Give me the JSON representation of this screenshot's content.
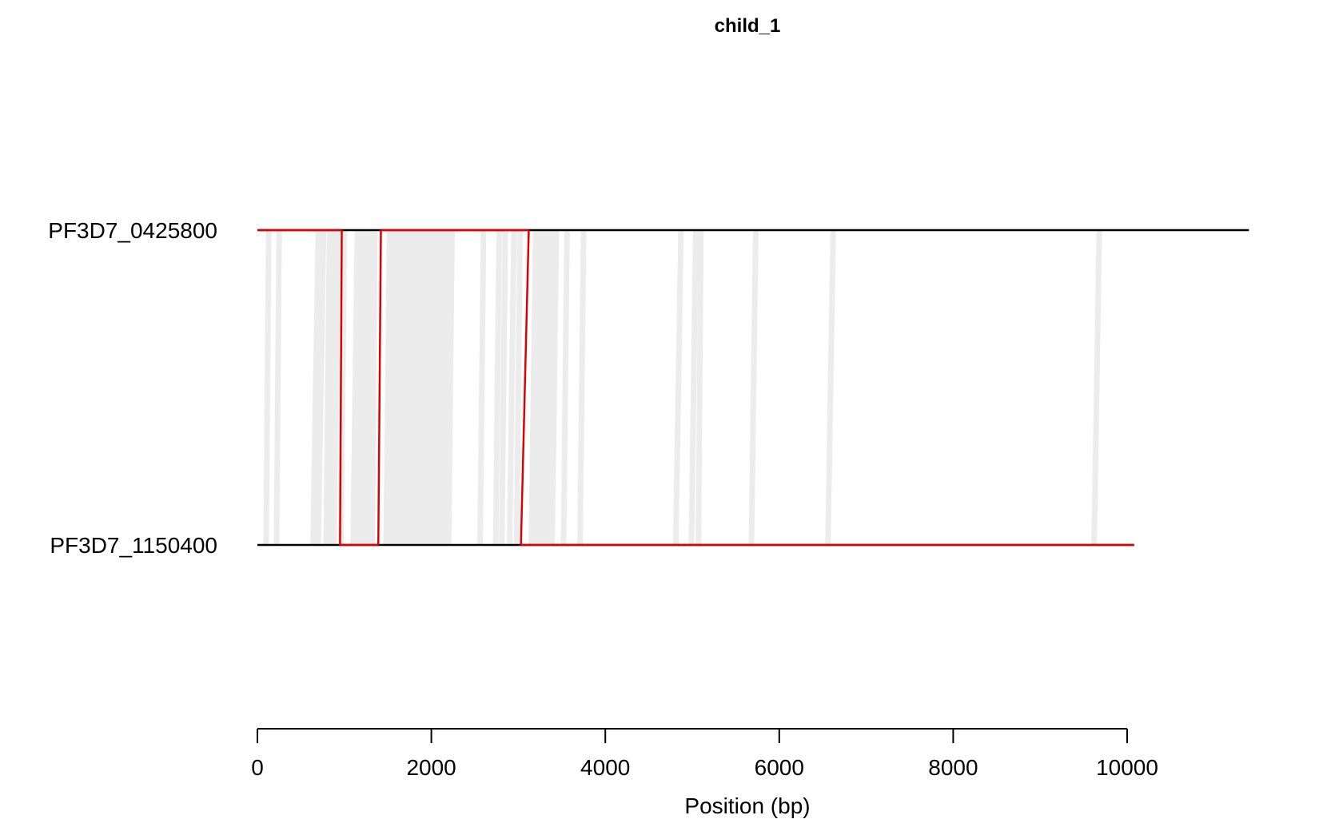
{
  "chart_data": {
    "type": "line",
    "title": "child_1",
    "xlabel": "Position (bp)",
    "ylabel": "",
    "xlim": [
      0,
      11400
    ],
    "x_ticks": [
      0,
      2000,
      4000,
      6000,
      8000,
      10000
    ],
    "x_tick_labels": [
      "0",
      "2000",
      "4000",
      "6000",
      "8000",
      "10000"
    ],
    "grid": false,
    "sequences": [
      {
        "name": "PF3D7_0425800",
        "start": 0,
        "end": 11400
      },
      {
        "name": "PF3D7_1150400",
        "start": 0,
        "end": 10080
      }
    ],
    "alignment_links": {
      "color": "#ececec",
      "pairs": [
        [
          130,
          100
        ],
        [
          250,
          220
        ],
        [
          700,
          640
        ],
        [
          760,
          700
        ],
        [
          830,
          790
        ],
        [
          880,
          840
        ],
        [
          920,
          880
        ],
        [
          1000,
          960
        ],
        [
          1150,
          1100
        ],
        [
          1250,
          1200
        ],
        [
          1300,
          1260
        ],
        [
          1350,
          1320
        ],
        [
          1520,
          1480
        ],
        [
          1580,
          1540
        ],
        [
          1650,
          1610
        ],
        [
          1720,
          1680
        ],
        [
          1800,
          1760
        ],
        [
          1880,
          1840
        ],
        [
          1950,
          1900
        ],
        [
          2020,
          1980
        ],
        [
          2080,
          2040
        ],
        [
          2150,
          2100
        ],
        [
          2220,
          2180
        ],
        [
          2600,
          2560
        ],
        [
          2780,
          2740
        ],
        [
          2850,
          2810
        ],
        [
          2950,
          2900
        ],
        [
          3020,
          2980
        ],
        [
          3200,
          3150
        ],
        [
          3280,
          3240
        ],
        [
          3350,
          3310
        ],
        [
          3420,
          3380
        ],
        [
          3560,
          3520
        ],
        [
          3750,
          3710
        ],
        [
          4870,
          4810
        ],
        [
          5040,
          4990
        ],
        [
          5100,
          5070
        ],
        [
          5730,
          5680
        ],
        [
          6620,
          6560
        ],
        [
          9680,
          9620
        ]
      ]
    },
    "recombination_path": {
      "color": "#dd0000",
      "segments": [
        {
          "from_seq": 0,
          "from_pos": 0,
          "to_seq": 0,
          "to_pos": 970
        },
        {
          "from_seq": 0,
          "from_pos": 970,
          "to_seq": 1,
          "to_pos": 950
        },
        {
          "from_seq": 1,
          "from_pos": 950,
          "to_seq": 1,
          "to_pos": 1390
        },
        {
          "from_seq": 1,
          "from_pos": 1390,
          "to_seq": 0,
          "to_pos": 1420
        },
        {
          "from_seq": 0,
          "from_pos": 1420,
          "to_seq": 0,
          "to_pos": 3120
        },
        {
          "from_seq": 0,
          "from_pos": 3120,
          "to_seq": 1,
          "to_pos": 3030
        },
        {
          "from_seq": 1,
          "from_pos": 3030,
          "to_seq": 1,
          "to_pos": 10080
        }
      ]
    }
  }
}
